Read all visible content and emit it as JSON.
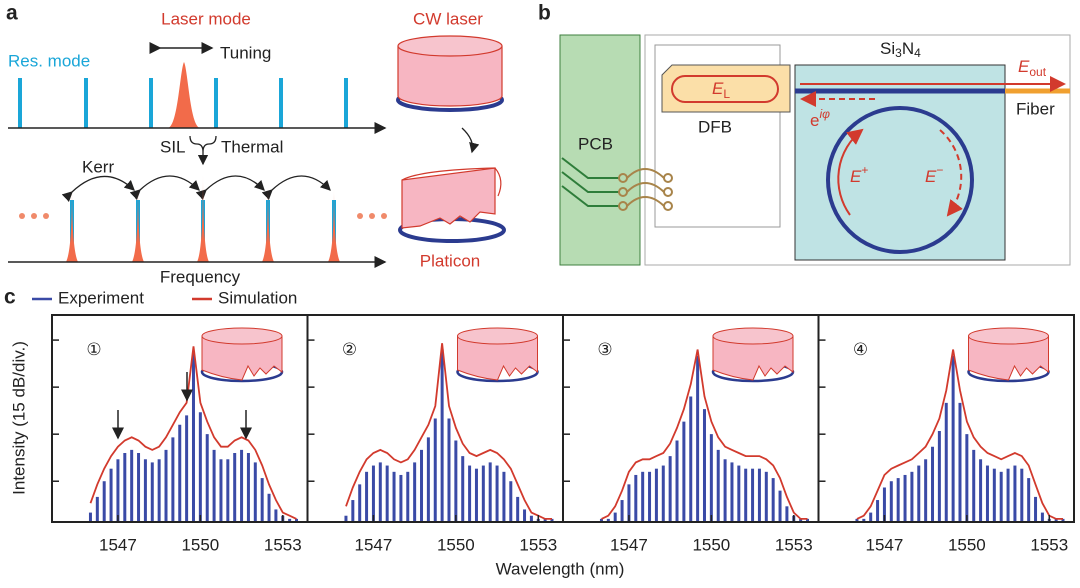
{
  "panel_labels": [
    "a",
    "b",
    "c"
  ],
  "a": {
    "laser_mode": "Laser mode",
    "res_mode": "Res. mode",
    "tuning": "Tuning",
    "sil": "SIL",
    "thermal": "Thermal",
    "kerr": "Kerr",
    "frequency": "Frequency",
    "cw_laser": "CW laser",
    "platicon": "Platicon"
  },
  "b": {
    "pcb": "PCB",
    "dfb": "DFB",
    "chip": {
      "si": "Si",
      "n3": "3",
      "n": "N",
      "n4": "4"
    },
    "fiber": "Fiber",
    "e_l": {
      "symbol": "E",
      "sub": "L"
    },
    "e_out": {
      "symbol": "E",
      "sub": "out"
    },
    "phase": {
      "base": "e",
      "sup": "iφ"
    },
    "e_plus": {
      "symbol": "E",
      "sup": "+"
    },
    "e_minus": {
      "symbol": "E",
      "sup": "−"
    }
  },
  "c": {
    "y_label": "Intensity (15 dB/div.)",
    "x_label": "Wavelength (nm)"
  },
  "chart_data": [
    {
      "type": "line",
      "label": "①",
      "x": [
        1546,
        1546.25,
        1546.5,
        1546.75,
        1547,
        1547.25,
        1547.5,
        1547.75,
        1548,
        1548.25,
        1548.5,
        1548.75,
        1549,
        1549.25,
        1549.5,
        1549.75,
        1550,
        1550.25,
        1550.5,
        1550.75,
        1551,
        1551.25,
        1551.5,
        1551.75,
        1552,
        1552.25,
        1552.5,
        1552.75,
        1553,
        1553.25,
        1553.5
      ],
      "series": [
        {
          "name": "Experiment",
          "color": "#3a4aa6",
          "values": [
            3,
            8,
            13,
            17,
            20,
            22,
            23,
            22,
            20,
            19,
            20,
            23,
            27,
            31,
            34,
            54,
            35,
            28,
            23,
            20,
            20,
            22,
            23,
            22,
            19,
            14,
            9,
            4,
            2,
            1,
            1
          ]
        },
        {
          "name": "Simulation",
          "color": "#d23a2d",
          "values": [
            6,
            12,
            17,
            21,
            24,
            26,
            27,
            26,
            24,
            23,
            24,
            27,
            31,
            35,
            38,
            56,
            38,
            32,
            27,
            24,
            24,
            26,
            27,
            26,
            23,
            18,
            12,
            7,
            3,
            2,
            1
          ]
        }
      ],
      "xlim": [
        1544.6,
        1553.9
      ],
      "xticks": [
        1547,
        1550,
        1553
      ],
      "ylim": [
        0,
        66
      ],
      "yticks": [
        13,
        28,
        43,
        58
      ]
    },
    {
      "type": "line",
      "label": "②",
      "x": [
        1546,
        1546.25,
        1546.5,
        1546.75,
        1547,
        1547.25,
        1547.5,
        1547.75,
        1548,
        1548.25,
        1548.5,
        1548.75,
        1549,
        1549.25,
        1549.5,
        1549.75,
        1550,
        1550.25,
        1550.5,
        1550.75,
        1551,
        1551.25,
        1551.5,
        1551.75,
        1552,
        1552.25,
        1552.5,
        1552.75,
        1553,
        1553.25,
        1553.5
      ],
      "series": [
        {
          "name": "Experiment",
          "color": "#3a4aa6",
          "values": [
            2,
            7,
            12,
            16,
            18,
            19,
            18,
            16,
            15,
            16,
            19,
            23,
            27,
            33,
            55,
            33,
            26,
            21,
            18,
            17,
            18,
            19,
            18,
            16,
            13,
            8,
            4,
            2,
            1,
            1,
            1
          ]
        },
        {
          "name": "Simulation",
          "color": "#d23a2d",
          "values": [
            5,
            11,
            16,
            20,
            22,
            23,
            22,
            20,
            19,
            20,
            23,
            27,
            31,
            37,
            57,
            37,
            30,
            25,
            22,
            21,
            22,
            23,
            22,
            20,
            17,
            12,
            7,
            3,
            2,
            1,
            1
          ]
        }
      ],
      "xlim": [
        1544.6,
        1553.9
      ],
      "xticks": [
        1547,
        1550,
        1553
      ],
      "ylim": [
        0,
        66
      ],
      "yticks": [
        13,
        28,
        43,
        58
      ]
    },
    {
      "type": "line",
      "label": "③",
      "x": [
        1546,
        1546.25,
        1546.5,
        1546.75,
        1547,
        1547.25,
        1547.5,
        1547.75,
        1548,
        1548.25,
        1548.5,
        1548.75,
        1549,
        1549.25,
        1549.5,
        1549.75,
        1550,
        1550.25,
        1550.5,
        1550.75,
        1551,
        1551.25,
        1551.5,
        1551.75,
        1552,
        1552.25,
        1552.5,
        1552.75,
        1553,
        1553.25,
        1553.5
      ],
      "series": [
        {
          "name": "Experiment",
          "color": "#3a4aa6",
          "values": [
            1,
            1,
            3,
            7,
            12,
            15,
            16,
            16,
            17,
            18,
            21,
            26,
            32,
            40,
            53,
            36,
            28,
            23,
            20,
            19,
            18,
            17,
            17,
            17,
            16,
            14,
            10,
            5,
            2,
            1,
            1
          ]
        },
        {
          "name": "Simulation",
          "color": "#d23a2d",
          "values": [
            1,
            2,
            5,
            10,
            16,
            19,
            20,
            20,
            21,
            22,
            25,
            30,
            36,
            44,
            55,
            40,
            32,
            27,
            24,
            23,
            22,
            21,
            21,
            21,
            20,
            18,
            14,
            8,
            3,
            1,
            1
          ]
        }
      ],
      "xlim": [
        1544.6,
        1553.9
      ],
      "xticks": [
        1547,
        1550,
        1553
      ],
      "ylim": [
        0,
        66
      ],
      "yticks": [
        13,
        28,
        43,
        58
      ]
    },
    {
      "type": "line",
      "label": "④",
      "x": [
        1546,
        1546.25,
        1546.5,
        1546.75,
        1547,
        1547.25,
        1547.5,
        1547.75,
        1548,
        1548.25,
        1548.5,
        1548.75,
        1549,
        1549.25,
        1549.5,
        1549.75,
        1550,
        1550.25,
        1550.5,
        1550.75,
        1551,
        1551.25,
        1551.5,
        1551.75,
        1552,
        1552.25,
        1552.5,
        1552.75,
        1553,
        1553.25,
        1553.5
      ],
      "series": [
        {
          "name": "Experiment",
          "color": "#3a4aa6",
          "values": [
            1,
            1,
            3,
            7,
            11,
            13,
            14,
            15,
            16,
            18,
            20,
            24,
            29,
            38,
            53,
            38,
            28,
            23,
            20,
            18,
            17,
            16,
            17,
            18,
            17,
            14,
            8,
            3,
            1,
            1,
            1
          ]
        },
        {
          "name": "Simulation",
          "color": "#d23a2d",
          "values": [
            1,
            2,
            5,
            10,
            15,
            17,
            18,
            19,
            20,
            22,
            24,
            28,
            33,
            42,
            55,
            42,
            32,
            27,
            24,
            22,
            21,
            20,
            21,
            22,
            21,
            18,
            12,
            6,
            2,
            1,
            1
          ]
        }
      ],
      "xlim": [
        1544.6,
        1553.9
      ],
      "xticks": [
        1547,
        1550,
        1553
      ],
      "ylim": [
        0,
        66
      ],
      "yticks": [
        13,
        28,
        43,
        58
      ]
    }
  ]
}
